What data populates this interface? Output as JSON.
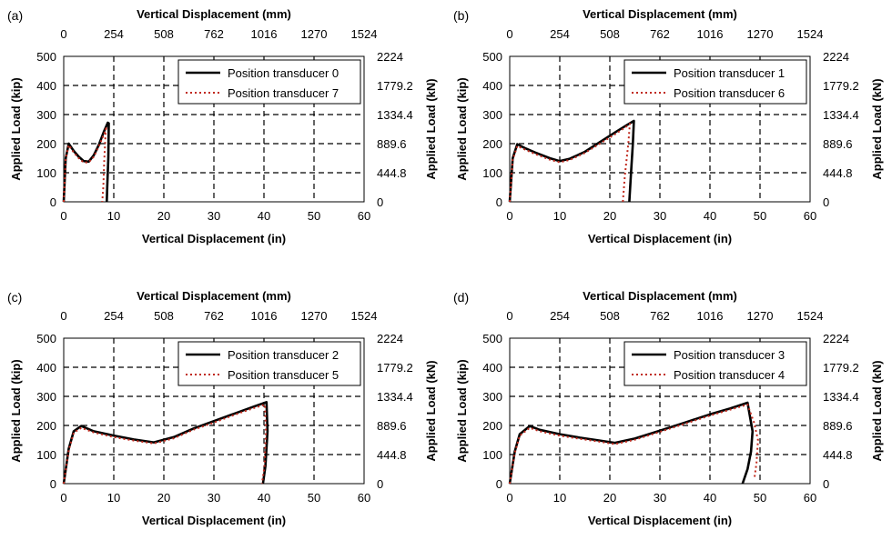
{
  "figure": {
    "top_axis_label": "Vertical Displacement (mm)",
    "bottom_axis_label": "Vertical Displacement (in)",
    "left_axis_label": "Applied Load (kip)",
    "right_axis_label": "Applied Load (kN)",
    "x_ticks": [
      "0",
      "10",
      "20",
      "30",
      "40",
      "50",
      "60"
    ],
    "x_ticks_mm": [
      "0",
      "254",
      "508",
      "762",
      "1016",
      "1270",
      "1524"
    ],
    "y_ticks": [
      "0",
      "100",
      "200",
      "300",
      "400",
      "500"
    ],
    "y_ticks_kn": [
      "0",
      "444.8",
      "889.6",
      "1334.4",
      "1779.2",
      "2224"
    ]
  },
  "colors": {
    "solid": "#000000",
    "dotted": "#c0281c",
    "grid": "#000000"
  },
  "chart_data": [
    {
      "panel_label": "(a)",
      "type": "line",
      "xlim": [
        0,
        60
      ],
      "ylim": [
        0,
        500
      ],
      "grid": true,
      "legend_position": "top-right",
      "xlabel": "Vertical Displacement (in)",
      "ylabel": "Applied Load (kip)",
      "series": [
        {
          "name": "Position transducer 0",
          "style": "solid",
          "x": [
            0,
            0.4,
            1,
            2,
            3,
            4,
            5,
            6,
            7,
            8,
            8.8,
            9,
            8.9,
            8.7,
            8.6
          ],
          "y": [
            0,
            150,
            200,
            175,
            155,
            140,
            138,
            160,
            195,
            240,
            272,
            270,
            150,
            50,
            0
          ]
        },
        {
          "name": "Position transducer 7",
          "style": "dotted",
          "x": [
            0,
            0.4,
            1,
            2,
            3,
            4,
            5,
            6,
            7,
            8,
            8.6,
            8.4,
            8.1,
            7.9,
            7.7
          ],
          "y": [
            0,
            150,
            195,
            170,
            150,
            135,
            136,
            155,
            190,
            230,
            258,
            250,
            140,
            50,
            0
          ]
        }
      ]
    },
    {
      "panel_label": "(b)",
      "type": "line",
      "xlim": [
        0,
        60
      ],
      "ylim": [
        0,
        500
      ],
      "grid": true,
      "legend_position": "top-right",
      "xlabel": "Vertical Displacement (in)",
      "ylabel": "Applied Load (kip)",
      "series": [
        {
          "name": "Position transducer 1",
          "style": "solid",
          "x": [
            0,
            0.6,
            1.5,
            3,
            5,
            8,
            10,
            12,
            15,
            18,
            21,
            23.5,
            24.8,
            24.6,
            24.2,
            23.9
          ],
          "y": [
            0,
            150,
            198,
            185,
            170,
            150,
            140,
            148,
            172,
            205,
            238,
            265,
            278,
            200,
            90,
            0
          ]
        },
        {
          "name": "Position transducer 6",
          "style": "dotted",
          "x": [
            0,
            0.6,
            1.5,
            3,
            5,
            8,
            10,
            12,
            15,
            18,
            21,
            23,
            24,
            23.7,
            23,
            22.6
          ],
          "y": [
            0,
            145,
            192,
            180,
            165,
            145,
            136,
            144,
            168,
            200,
            232,
            255,
            268,
            200,
            90,
            0
          ]
        }
      ]
    },
    {
      "panel_label": "(c)",
      "type": "line",
      "xlim": [
        0,
        60
      ],
      "ylim": [
        0,
        500
      ],
      "grid": true,
      "legend_position": "top-right",
      "xlabel": "Vertical Displacement (in)",
      "ylabel": "Applied Load (kip)",
      "series": [
        {
          "name": "Position transducer 2",
          "style": "solid",
          "x": [
            0,
            1,
            2,
            3.5,
            6,
            10,
            14,
            18,
            22,
            26,
            30,
            34,
            38,
            40.5,
            40.7,
            40.3,
            39.8
          ],
          "y": [
            0,
            120,
            180,
            198,
            180,
            165,
            152,
            142,
            160,
            190,
            215,
            240,
            265,
            280,
            180,
            60,
            0
          ]
        },
        {
          "name": "Position transducer 5",
          "style": "dotted",
          "x": [
            0,
            1,
            2,
            3.5,
            6,
            10,
            14,
            18,
            22,
            26,
            30,
            34,
            38,
            40.2,
            40.4,
            40.1,
            39.6
          ],
          "y": [
            0,
            115,
            175,
            192,
            176,
            160,
            148,
            138,
            156,
            186,
            210,
            236,
            260,
            272,
            180,
            60,
            0
          ]
        }
      ]
    },
    {
      "panel_label": "(d)",
      "type": "line",
      "xlim": [
        0,
        60
      ],
      "ylim": [
        0,
        500
      ],
      "grid": true,
      "legend_position": "top-right",
      "xlabel": "Vertical Displacement (in)",
      "ylabel": "Applied Load (kip)",
      "series": [
        {
          "name": "Position transducer 3",
          "style": "solid",
          "x": [
            0,
            1,
            2,
            4,
            6,
            10,
            14,
            18,
            21,
            25,
            30,
            35,
            40,
            44,
            47.5,
            48.5,
            48.2,
            47.5,
            46.5
          ],
          "y": [
            0,
            110,
            170,
            198,
            185,
            170,
            158,
            148,
            140,
            155,
            182,
            210,
            238,
            258,
            278,
            180,
            110,
            50,
            0
          ]
        },
        {
          "name": "Position transducer 4",
          "style": "dotted",
          "x": [
            0,
            1,
            2,
            4,
            6,
            10,
            14,
            18,
            21,
            25,
            30,
            35,
            40,
            44,
            47.5,
            48.8,
            49.6,
            49.3,
            48.9
          ],
          "y": [
            0,
            105,
            165,
            192,
            180,
            165,
            154,
            144,
            136,
            151,
            178,
            206,
            234,
            254,
            272,
            210,
            150,
            70,
            20
          ]
        }
      ]
    }
  ]
}
